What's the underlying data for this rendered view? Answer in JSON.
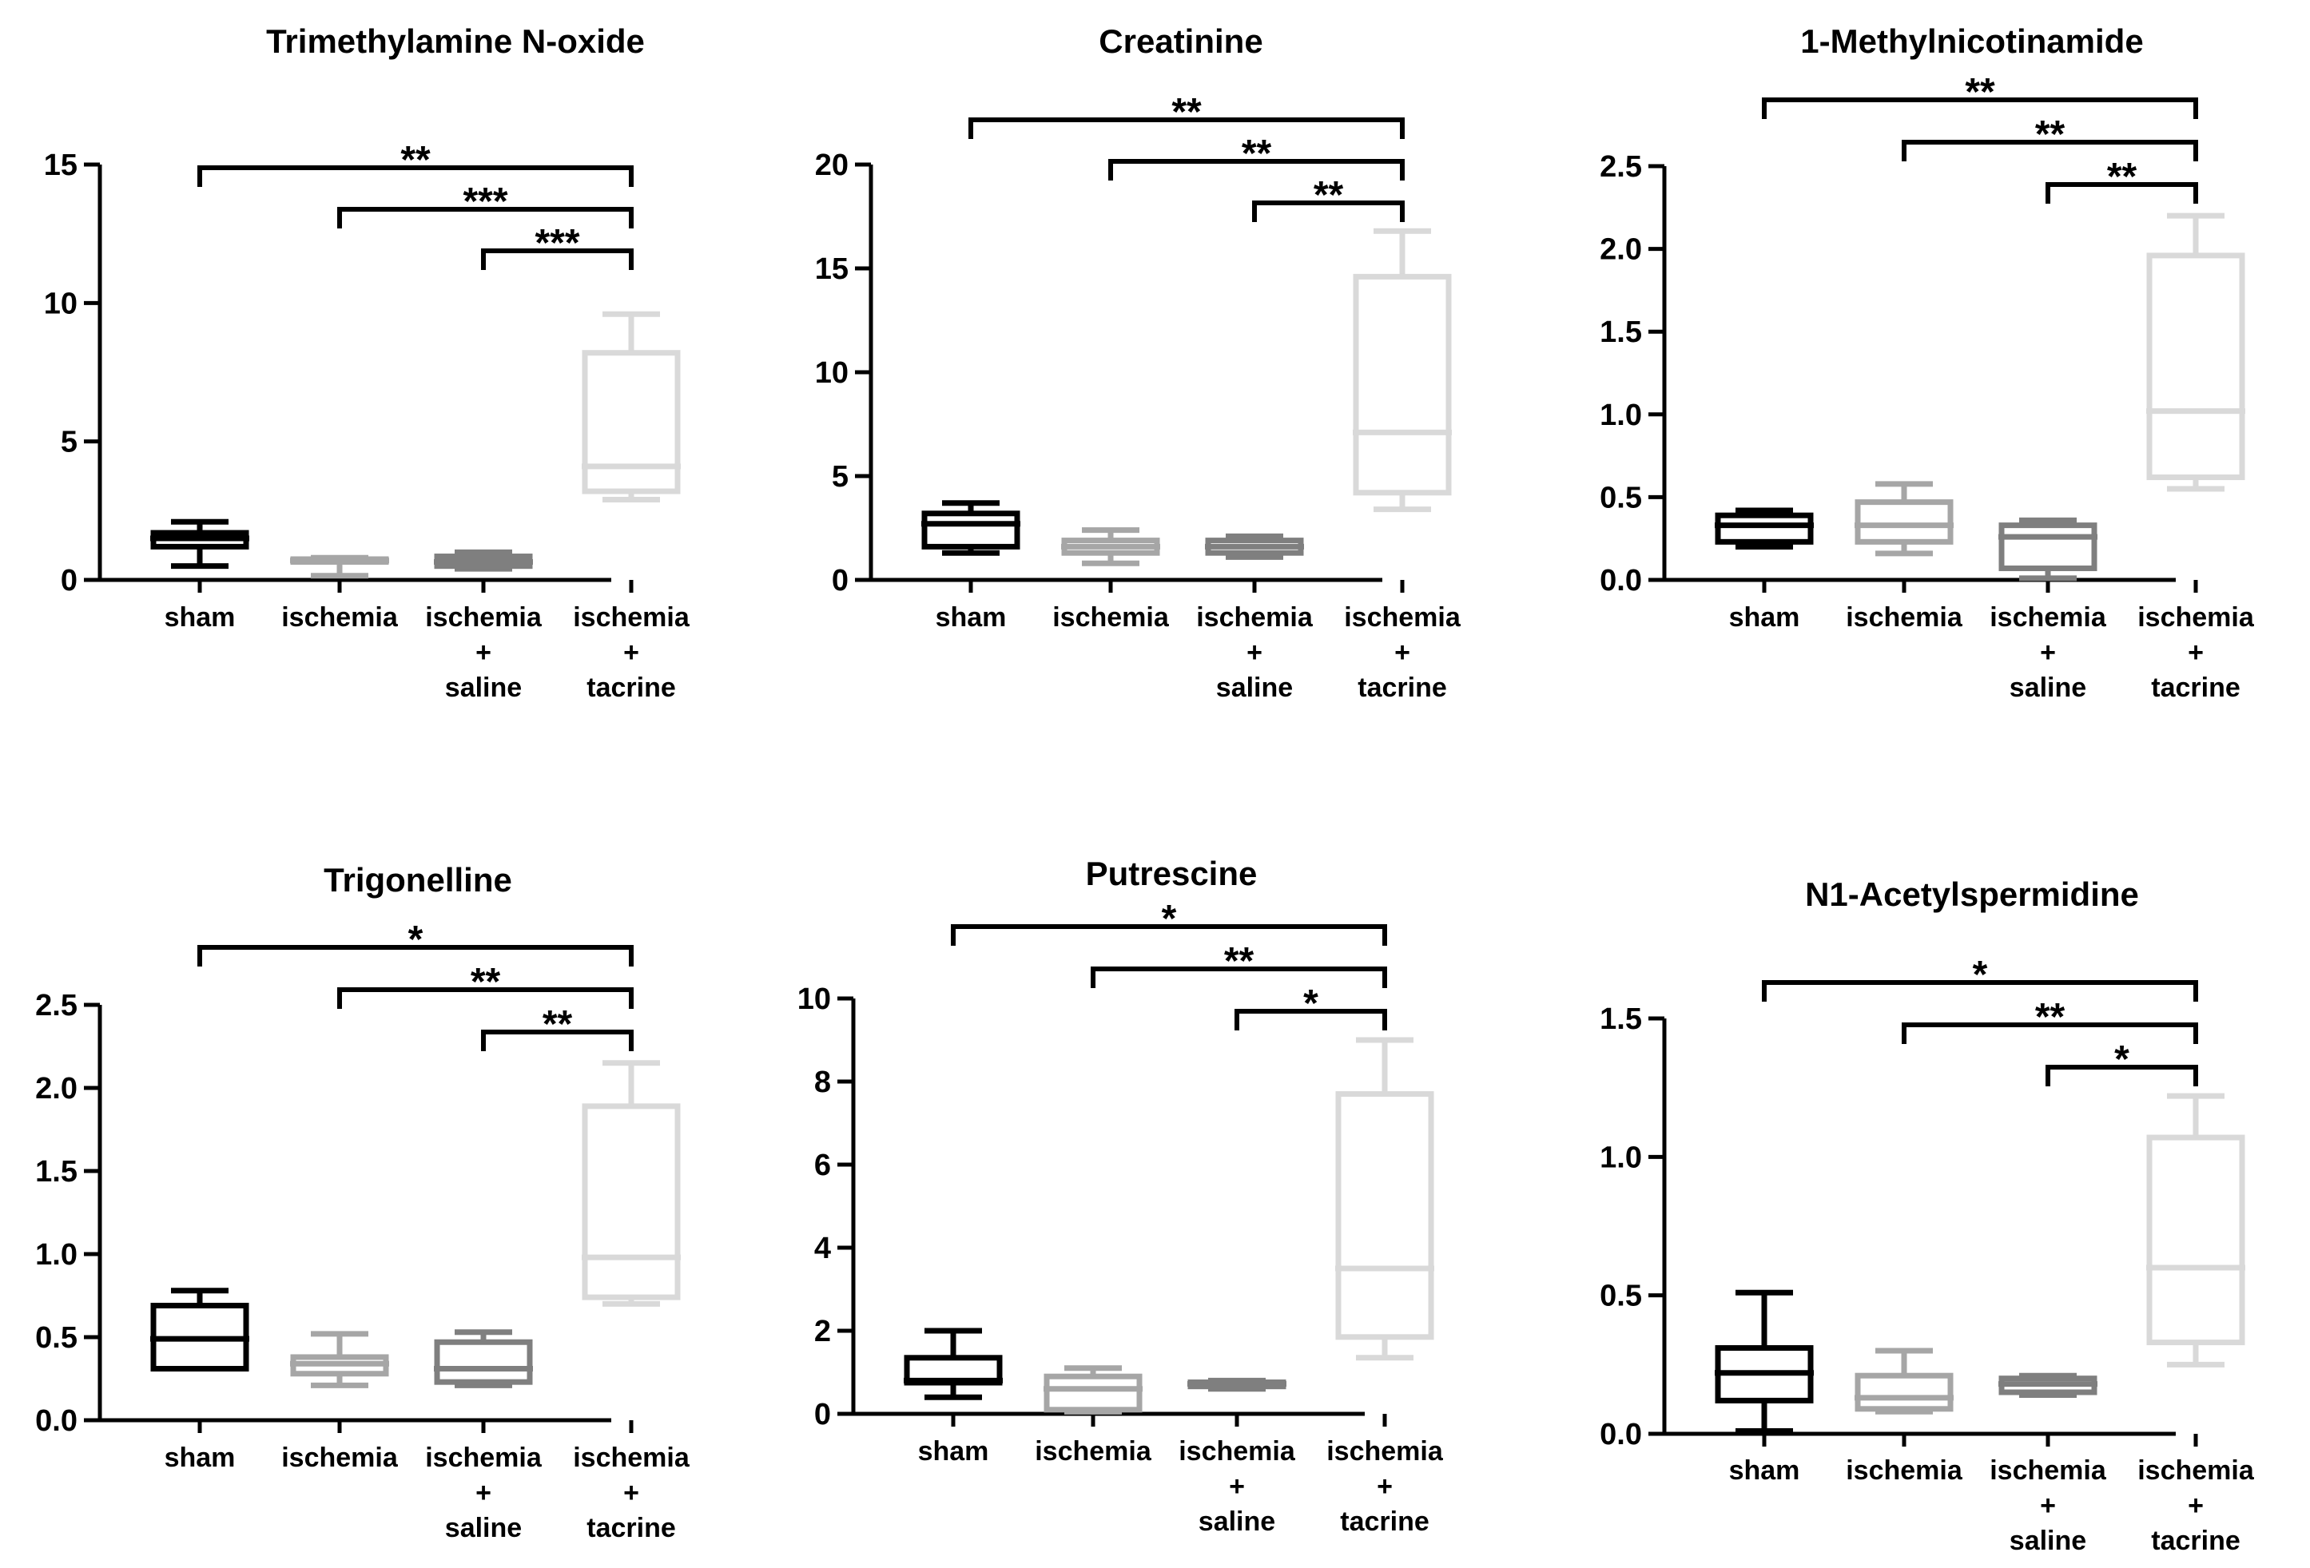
{
  "colors": {
    "sham": "#000000",
    "ischemia": "#a6a6a6",
    "ischemia_saline": "#7f7f7f",
    "ischemia_tacrine": "#d9d9d9"
  },
  "chart_data": [
    {
      "type": "box",
      "title": "Trimethylamine N-oxide",
      "categories": [
        [
          "sham"
        ],
        [
          "ischemia"
        ],
        [
          "ischemia",
          "+",
          "saline"
        ],
        [
          "ischemia",
          "+",
          "tacrine"
        ]
      ],
      "yticks": [
        "0",
        "5",
        "10",
        "15"
      ],
      "ylim": [
        0,
        15
      ],
      "boxes": [
        {
          "min": 0.5,
          "q1": 1.2,
          "median": 1.5,
          "q3": 1.7,
          "max": 2.1
        },
        {
          "min": 0.15,
          "q1": 0.65,
          "median": 0.7,
          "q3": 0.75,
          "max": 0.8
        },
        {
          "min": 0.4,
          "q1": 0.5,
          "median": 0.65,
          "q3": 0.85,
          "max": 1.0
        },
        {
          "min": 2.9,
          "q1": 3.2,
          "median": 4.1,
          "q3": 8.2,
          "max": 9.6
        }
      ],
      "significance": [
        {
          "from": 0,
          "to": 3,
          "label": "**"
        },
        {
          "from": 1,
          "to": 3,
          "label": "***"
        },
        {
          "from": 2,
          "to": 3,
          "label": "***"
        }
      ]
    },
    {
      "type": "box",
      "title": "Creatinine",
      "categories": [
        [
          "sham"
        ],
        [
          "ischemia"
        ],
        [
          "ischemia",
          "+",
          "saline"
        ],
        [
          "ischemia",
          "+",
          "tacrine"
        ]
      ],
      "yticks": [
        "0",
        "5",
        "10",
        "15",
        "20"
      ],
      "ylim": [
        0,
        20
      ],
      "boxes": [
        {
          "min": 1.3,
          "q1": 1.6,
          "median": 2.7,
          "q3": 3.2,
          "max": 3.7
        },
        {
          "min": 0.8,
          "q1": 1.3,
          "median": 1.6,
          "q3": 1.9,
          "max": 2.4
        },
        {
          "min": 1.1,
          "q1": 1.3,
          "median": 1.6,
          "q3": 1.9,
          "max": 2.1
        },
        {
          "min": 3.4,
          "q1": 4.2,
          "median": 7.1,
          "q3": 14.6,
          "max": 16.8
        }
      ],
      "significance": [
        {
          "from": 0,
          "to": 3,
          "label": "**"
        },
        {
          "from": 1,
          "to": 3,
          "label": "**"
        },
        {
          "from": 2,
          "to": 3,
          "label": "**"
        }
      ]
    },
    {
      "type": "box",
      "title": "1-Methylnicotinamide",
      "categories": [
        [
          "sham"
        ],
        [
          "ischemia"
        ],
        [
          "ischemia",
          "+",
          "saline"
        ],
        [
          "ischemia",
          "+",
          "tacrine"
        ]
      ],
      "yticks": [
        "0.0",
        "0.5",
        "1.0",
        "1.5",
        "2.0",
        "2.5"
      ],
      "ylim": [
        0,
        2.5
      ],
      "boxes": [
        {
          "min": 0.2,
          "q1": 0.23,
          "median": 0.33,
          "q3": 0.39,
          "max": 0.42
        },
        {
          "min": 0.16,
          "q1": 0.23,
          "median": 0.33,
          "q3": 0.47,
          "max": 0.58
        },
        {
          "min": 0.01,
          "q1": 0.07,
          "median": 0.26,
          "q3": 0.33,
          "max": 0.36
        },
        {
          "min": 0.55,
          "q1": 0.62,
          "median": 1.02,
          "q3": 1.96,
          "max": 2.2
        }
      ],
      "significance": [
        {
          "from": 0,
          "to": 3,
          "label": "**"
        },
        {
          "from": 1,
          "to": 3,
          "label": "**"
        },
        {
          "from": 2,
          "to": 3,
          "label": "**"
        }
      ]
    },
    {
      "type": "box",
      "title": "Trigonelline",
      "categories": [
        [
          "sham"
        ],
        [
          "ischemia"
        ],
        [
          "ischemia",
          "+",
          "saline"
        ],
        [
          "ischemia",
          "+",
          "tacrine"
        ]
      ],
      "yticks": [
        "0.0",
        "0.5",
        "1.0",
        "1.5",
        "2.0",
        "2.5"
      ],
      "ylim": [
        0,
        2.5
      ],
      "boxes": [
        {
          "min": 0.31,
          "q1": 0.31,
          "median": 0.49,
          "q3": 0.69,
          "max": 0.78
        },
        {
          "min": 0.21,
          "q1": 0.28,
          "median": 0.34,
          "q3": 0.38,
          "max": 0.52
        },
        {
          "min": 0.21,
          "q1": 0.23,
          "median": 0.31,
          "q3": 0.47,
          "max": 0.53
        },
        {
          "min": 0.7,
          "q1": 0.74,
          "median": 0.98,
          "q3": 1.89,
          "max": 2.15
        }
      ],
      "significance": [
        {
          "from": 0,
          "to": 3,
          "label": "*"
        },
        {
          "from": 1,
          "to": 3,
          "label": "**"
        },
        {
          "from": 2,
          "to": 3,
          "label": "**"
        }
      ]
    },
    {
      "type": "box",
      "title": "Putrescine",
      "categories": [
        [
          "sham"
        ],
        [
          "ischemia"
        ],
        [
          "ischemia",
          "+",
          "saline"
        ],
        [
          "ischemia",
          "+",
          "tacrine"
        ]
      ],
      "yticks": [
        "0",
        "2",
        "4",
        "6",
        "8",
        "10"
      ],
      "ylim": [
        0,
        10
      ],
      "boxes": [
        {
          "min": 0.4,
          "q1": 0.75,
          "median": 0.8,
          "q3": 1.35,
          "max": 2.0
        },
        {
          "min": 0.05,
          "q1": 0.1,
          "median": 0.6,
          "q3": 0.9,
          "max": 1.1
        },
        {
          "min": 0.6,
          "q1": 0.66,
          "median": 0.72,
          "q3": 0.76,
          "max": 0.8
        },
        {
          "min": 1.35,
          "q1": 1.85,
          "median": 3.5,
          "q3": 7.7,
          "max": 9.0
        }
      ],
      "significance": [
        {
          "from": 0,
          "to": 3,
          "label": "*"
        },
        {
          "from": 1,
          "to": 3,
          "label": "**"
        },
        {
          "from": 2,
          "to": 3,
          "label": "*"
        }
      ]
    },
    {
      "type": "box",
      "title": "N1-Acetylspermidine",
      "categories": [
        [
          "sham"
        ],
        [
          "ischemia"
        ],
        [
          "ischemia",
          "+",
          "saline"
        ],
        [
          "ischemia",
          "+",
          "tacrine"
        ]
      ],
      "yticks": [
        "0.0",
        "0.5",
        "1.0",
        "1.5"
      ],
      "ylim": [
        0,
        1.5
      ],
      "boxes": [
        {
          "min": 0.01,
          "q1": 0.12,
          "median": 0.22,
          "q3": 0.31,
          "max": 0.51
        },
        {
          "min": 0.08,
          "q1": 0.09,
          "median": 0.13,
          "q3": 0.21,
          "max": 0.3
        },
        {
          "min": 0.14,
          "q1": 0.15,
          "median": 0.18,
          "q3": 0.2,
          "max": 0.21
        },
        {
          "min": 0.25,
          "q1": 0.33,
          "median": 0.6,
          "q3": 1.07,
          "max": 1.22
        }
      ],
      "significance": [
        {
          "from": 0,
          "to": 3,
          "label": "*"
        },
        {
          "from": 1,
          "to": 3,
          "label": "**"
        },
        {
          "from": 2,
          "to": 3,
          "label": "*"
        }
      ]
    }
  ]
}
